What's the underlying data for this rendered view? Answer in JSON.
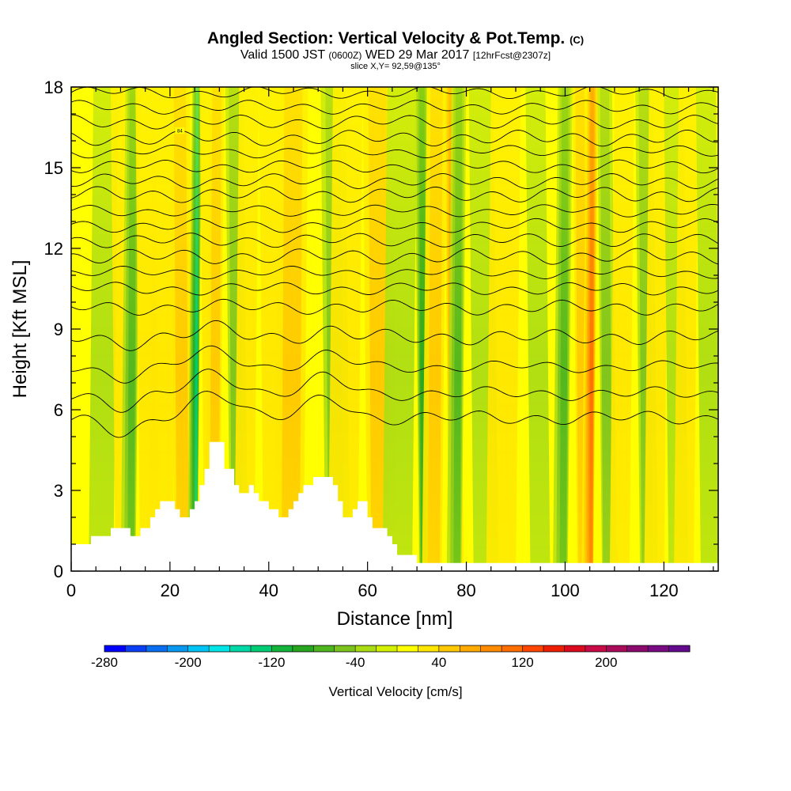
{
  "chart_data": {
    "type": "heatmap",
    "title": "Angled Section: Vertical Velocity & Pot.Temp.",
    "title_mark": "(C)",
    "subtitle_parts": [
      "Valid 1500 JST",
      "(0600Z)",
      "WED 29 Mar 2017",
      "[12hrFcst@2307z]"
    ],
    "slice_label": "slice X,Y= 92,59@135°",
    "xlabel": "Distance [nm]",
    "ylabel": "Height [Kft MSL]",
    "xlim": [
      0,
      131
    ],
    "ylim": [
      0,
      18
    ],
    "xticks": [
      "0",
      "20",
      "40",
      "60",
      "80",
      "100",
      "120"
    ],
    "xtick_values": [
      0,
      20,
      40,
      60,
      80,
      100,
      120
    ],
    "yticks": [
      "0",
      "3",
      "6",
      "9",
      "12",
      "15",
      "18"
    ],
    "ytick_values": [
      0,
      3,
      6,
      9,
      12,
      15,
      18
    ],
    "colorbar": {
      "label": "Vertical Velocity [cm/s]",
      "range": [
        -280,
        280
      ],
      "step": 20,
      "tick_labels": [
        "-280",
        "-200",
        "-120",
        "-40",
        "40",
        "120",
        "200"
      ],
      "tick_values": [
        -280,
        -200,
        -120,
        -40,
        40,
        120,
        200
      ],
      "colors": [
        "#0000ff",
        "#0a3ff5",
        "#0a6ef0",
        "#0898f0",
        "#00c4f5",
        "#00e6e6",
        "#00d9a6",
        "#00cc73",
        "#14b43c",
        "#28a51e",
        "#4fb51e",
        "#7dc31e",
        "#aadc14",
        "#d2f000",
        "#ffff00",
        "#ffe600",
        "#ffc800",
        "#ffaa00",
        "#ff8c00",
        "#ff6e00",
        "#ff4600",
        "#f01e00",
        "#dc0a1e",
        "#c80a46",
        "#aa0a5a",
        "#8c0a6e",
        "#780a82",
        "#640a8c"
      ]
    },
    "background_fill": "#ffff00",
    "terrain_color": "#ffffff",
    "terrain": [
      [
        0,
        1.0
      ],
      [
        4,
        1.0
      ],
      [
        4,
        1.3
      ],
      [
        8,
        1.3
      ],
      [
        8,
        1.6
      ],
      [
        12,
        1.6
      ],
      [
        12,
        1.3
      ],
      [
        14,
        1.3
      ],
      [
        14,
        1.6
      ],
      [
        16,
        1.6
      ],
      [
        16,
        2.0
      ],
      [
        17,
        2.0
      ],
      [
        17,
        2.3
      ],
      [
        18,
        2.3
      ],
      [
        18,
        2.6
      ],
      [
        21,
        2.6
      ],
      [
        21,
        2.3
      ],
      [
        22,
        2.3
      ],
      [
        22,
        2.0
      ],
      [
        24,
        2.0
      ],
      [
        24,
        2.3
      ],
      [
        25,
        2.3
      ],
      [
        25,
        2.6
      ],
      [
        26,
        2.6
      ],
      [
        26,
        3.2
      ],
      [
        27,
        3.2
      ],
      [
        27,
        3.8
      ],
      [
        28,
        3.8
      ],
      [
        28,
        4.8
      ],
      [
        31,
        4.8
      ],
      [
        31,
        3.8
      ],
      [
        33,
        3.8
      ],
      [
        33,
        3.2
      ],
      [
        34,
        3.2
      ],
      [
        34,
        2.9
      ],
      [
        36,
        2.9
      ],
      [
        36,
        3.2
      ],
      [
        37,
        3.2
      ],
      [
        37,
        2.9
      ],
      [
        38,
        2.9
      ],
      [
        38,
        2.6
      ],
      [
        40,
        2.6
      ],
      [
        40,
        2.3
      ],
      [
        42,
        2.3
      ],
      [
        42,
        2.0
      ],
      [
        44,
        2.0
      ],
      [
        44,
        2.3
      ],
      [
        45,
        2.3
      ],
      [
        45,
        2.6
      ],
      [
        46,
        2.6
      ],
      [
        46,
        2.9
      ],
      [
        47,
        2.9
      ],
      [
        47,
        3.2
      ],
      [
        49,
        3.2
      ],
      [
        49,
        3.5
      ],
      [
        53,
        3.5
      ],
      [
        53,
        3.2
      ],
      [
        54,
        3.2
      ],
      [
        54,
        2.6
      ],
      [
        55,
        2.6
      ],
      [
        55,
        2.0
      ],
      [
        57,
        2.0
      ],
      [
        57,
        2.3
      ],
      [
        58,
        2.3
      ],
      [
        58,
        2.6
      ],
      [
        60,
        2.6
      ],
      [
        60,
        2.0
      ],
      [
        61,
        2.0
      ],
      [
        61,
        1.6
      ],
      [
        64,
        1.6
      ],
      [
        64,
        1.3
      ],
      [
        65,
        1.3
      ],
      [
        65,
        1.0
      ],
      [
        66,
        1.0
      ],
      [
        66,
        0.6
      ],
      [
        70,
        0.6
      ],
      [
        70,
        0.3
      ],
      [
        131,
        0.3
      ]
    ],
    "bands": [
      {
        "x": 7,
        "w": 2.5,
        "v": -18
      },
      {
        "x": 10,
        "w": 2.0,
        "v": 30
      },
      {
        "x": 12.5,
        "w": 1.5,
        "v": -60
      },
      {
        "x": 15,
        "w": 2.0,
        "v": 30
      },
      {
        "x": 19,
        "w": 2.5,
        "v": 25
      },
      {
        "x": 22,
        "w": 2.0,
        "v": 45
      },
      {
        "x": 25.5,
        "w": 1.0,
        "v": -130
      },
      {
        "x": 27.5,
        "w": 1.5,
        "v": 30
      },
      {
        "x": 29.5,
        "w": 1.5,
        "v": 40
      },
      {
        "x": 33,
        "w": 1.8,
        "v": -50
      },
      {
        "x": 36,
        "w": 2.0,
        "v": 20
      },
      {
        "x": 40,
        "w": 2.0,
        "v": 20
      },
      {
        "x": 45,
        "w": 3.0,
        "v": 40
      },
      {
        "x": 53,
        "w": 2.5,
        "v": -55
      },
      {
        "x": 56,
        "w": 3.0,
        "v": 25
      },
      {
        "x": 62,
        "w": 3.0,
        "v": 50
      },
      {
        "x": 67,
        "w": 3.0,
        "v": -30
      },
      {
        "x": 71,
        "w": 1.5,
        "v": -85
      },
      {
        "x": 74,
        "w": 2.0,
        "v": 45
      },
      {
        "x": 77,
        "w": 1.5,
        "v": 95
      },
      {
        "x": 78.5,
        "w": 1.5,
        "v": -60
      },
      {
        "x": 83,
        "w": 2.5,
        "v": -25
      },
      {
        "x": 88,
        "w": 3.0,
        "v": 20
      },
      {
        "x": 94,
        "w": 2.0,
        "v": -20
      },
      {
        "x": 100,
        "w": 1.5,
        "v": -65
      },
      {
        "x": 103,
        "w": 1.5,
        "v": 40
      },
      {
        "x": 105.5,
        "w": 1.2,
        "v": 110
      },
      {
        "x": 108,
        "w": 1.5,
        "v": -45
      },
      {
        "x": 112,
        "w": 2.0,
        "v": 35
      },
      {
        "x": 116,
        "w": 1.8,
        "v": -55
      },
      {
        "x": 119,
        "w": 2.0,
        "v": 30
      },
      {
        "x": 122,
        "w": 2.0,
        "v": -35
      },
      {
        "x": 125,
        "w": 2.0,
        "v": 25
      },
      {
        "x": 128.5,
        "w": 2.0,
        "v": -35
      }
    ],
    "isentropes": [
      {
        "y": 17.8,
        "label": "",
        "label_x": 0
      },
      {
        "y": 17.25,
        "label": "",
        "label_x": 0
      },
      {
        "y": 16.7,
        "label": "",
        "label_x": 0
      },
      {
        "y": 16.1,
        "label": "84",
        "label_x": 22
      },
      {
        "y": 15.6,
        "label": "",
        "label_x": 0
      },
      {
        "y": 15.05,
        "label": "",
        "label_x": 0
      },
      {
        "y": 14.5,
        "label": "",
        "label_x": 0
      },
      {
        "y": 14.0,
        "label": "",
        "label_x": 0
      },
      {
        "y": 13.4,
        "label": "",
        "label_x": 0
      },
      {
        "y": 12.85,
        "label": "",
        "label_x": 0
      },
      {
        "y": 12.3,
        "label": "",
        "label_x": 0
      },
      {
        "y": 11.7,
        "label": "",
        "label_x": 0
      },
      {
        "y": 11.1,
        "label": "",
        "label_x": 0
      },
      {
        "y": 10.5,
        "label": "",
        "label_x": 0
      },
      {
        "y": 9.8,
        "label": "",
        "label_x": 0
      },
      {
        "y": 8.7,
        "label": "",
        "label_x": 0
      },
      {
        "y": 7.6,
        "label": "",
        "label_x": 0
      },
      {
        "y": 6.6,
        "label": "",
        "label_x": 0
      },
      {
        "y": 5.7,
        "label": "",
        "label_x": 0
      }
    ]
  }
}
